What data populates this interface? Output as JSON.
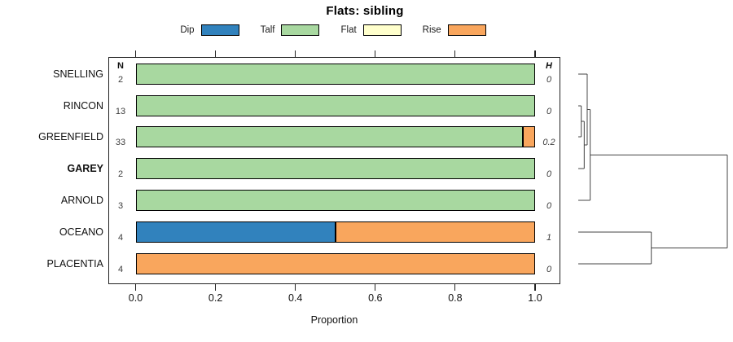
{
  "panel": {
    "n_header": "N",
    "h_header": "H"
  },
  "chart_data": {
    "type": "bar",
    "orientation": "horizontal",
    "stacked": true,
    "title": "Flats: sibling",
    "xlabel": "Proportion",
    "xlim": [
      0,
      1
    ],
    "x_ticks": [
      0,
      0.2,
      0.4,
      0.6,
      0.8,
      1.0
    ],
    "x_tick_labels": [
      "0.0",
      "0.2",
      "0.4",
      "0.6",
      "0.8",
      "1.0"
    ],
    "grid": false,
    "legend_position": "top",
    "categories": [
      "SNELLING",
      "RINCON",
      "GREENFIELD",
      "GAREY",
      "ARNOLD",
      "OCEANO",
      "PLACENTIA"
    ],
    "emphasized_category": "GAREY",
    "n_values": [
      2,
      13,
      33,
      2,
      3,
      4,
      4
    ],
    "h_values": [
      0,
      0,
      0.2,
      0,
      0,
      1,
      0
    ],
    "series": [
      {
        "name": "Dip",
        "color": "#3182BD",
        "values": [
          0,
          0,
          0,
          0,
          0,
          0.5,
          0
        ]
      },
      {
        "name": "Talf",
        "color": "#A8D8A0",
        "values": [
          1,
          1,
          0.97,
          1,
          1,
          0,
          0
        ]
      },
      {
        "name": "Flat",
        "color": "#FFFFCC",
        "values": [
          0,
          0,
          0,
          0,
          0,
          0,
          0
        ]
      },
      {
        "name": "Rise",
        "color": "#F9A65D",
        "values": [
          0,
          0,
          0.03,
          0,
          0,
          0.5,
          1
        ]
      }
    ],
    "dendrogram": {
      "description": "hierarchical clustering of rows, drawn to the right",
      "merges": [
        {
          "id": "A",
          "a": "L1",
          "b": "L2",
          "h": 0.02
        },
        {
          "id": "B",
          "a": "A",
          "b": "L3",
          "h": 0.04
        },
        {
          "id": "C",
          "a": "L0",
          "b": "B",
          "h": 0.06
        },
        {
          "id": "D",
          "a": "C",
          "b": "L4",
          "h": 0.08
        },
        {
          "id": "E",
          "a": "L5",
          "b": "L6",
          "h": 0.49
        },
        {
          "id": "R",
          "a": "D",
          "b": "E",
          "h": 1.0
        }
      ]
    }
  }
}
